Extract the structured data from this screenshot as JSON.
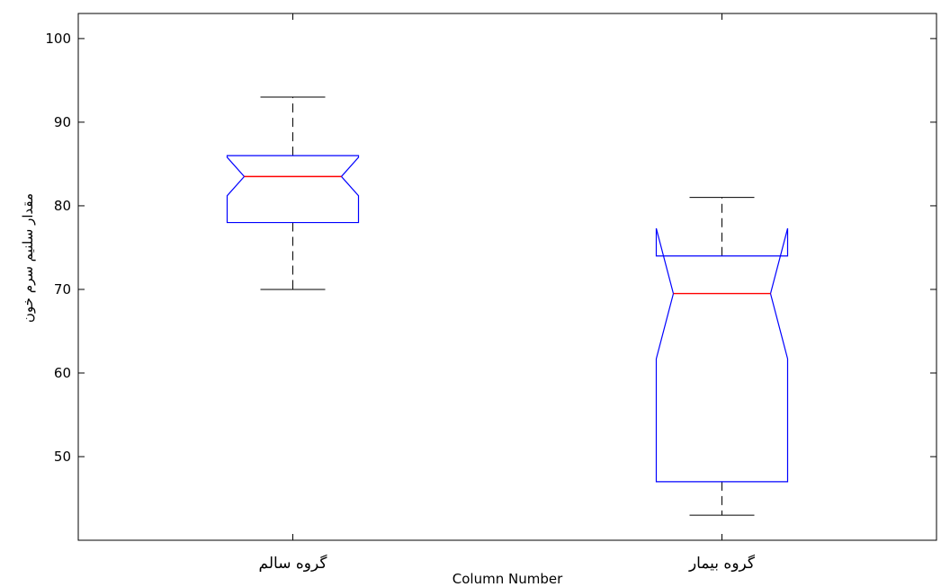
{
  "chart_data": {
    "type": "boxplot",
    "notched": true,
    "title": "",
    "xlabel": "Column Number",
    "ylabel": "مقدار سلنیم سرم خون",
    "ylim": [
      40,
      103
    ],
    "yticks": [
      50,
      60,
      70,
      80,
      90,
      100
    ],
    "categories": [
      "گروه سالم",
      "گروه بیمار"
    ],
    "boxes": [
      {
        "category": "گروه سالم",
        "whisker_low": 70,
        "q1": 78,
        "notch_low": 81.2,
        "median": 83.5,
        "notch_high": 85.8,
        "q3": 86,
        "whisker_high": 93
      },
      {
        "category": "گروه بیمار",
        "whisker_low": 43,
        "q1": 47,
        "notch_low": 61.7,
        "median": 69.5,
        "notch_high": 77.3,
        "q3": 74,
        "whisker_high": 81
      }
    ],
    "colors": {
      "box": "#0000ff",
      "median": "#ff0000",
      "whisker": "#000000",
      "axes": "#000000"
    },
    "grid": false,
    "legend": "none"
  }
}
